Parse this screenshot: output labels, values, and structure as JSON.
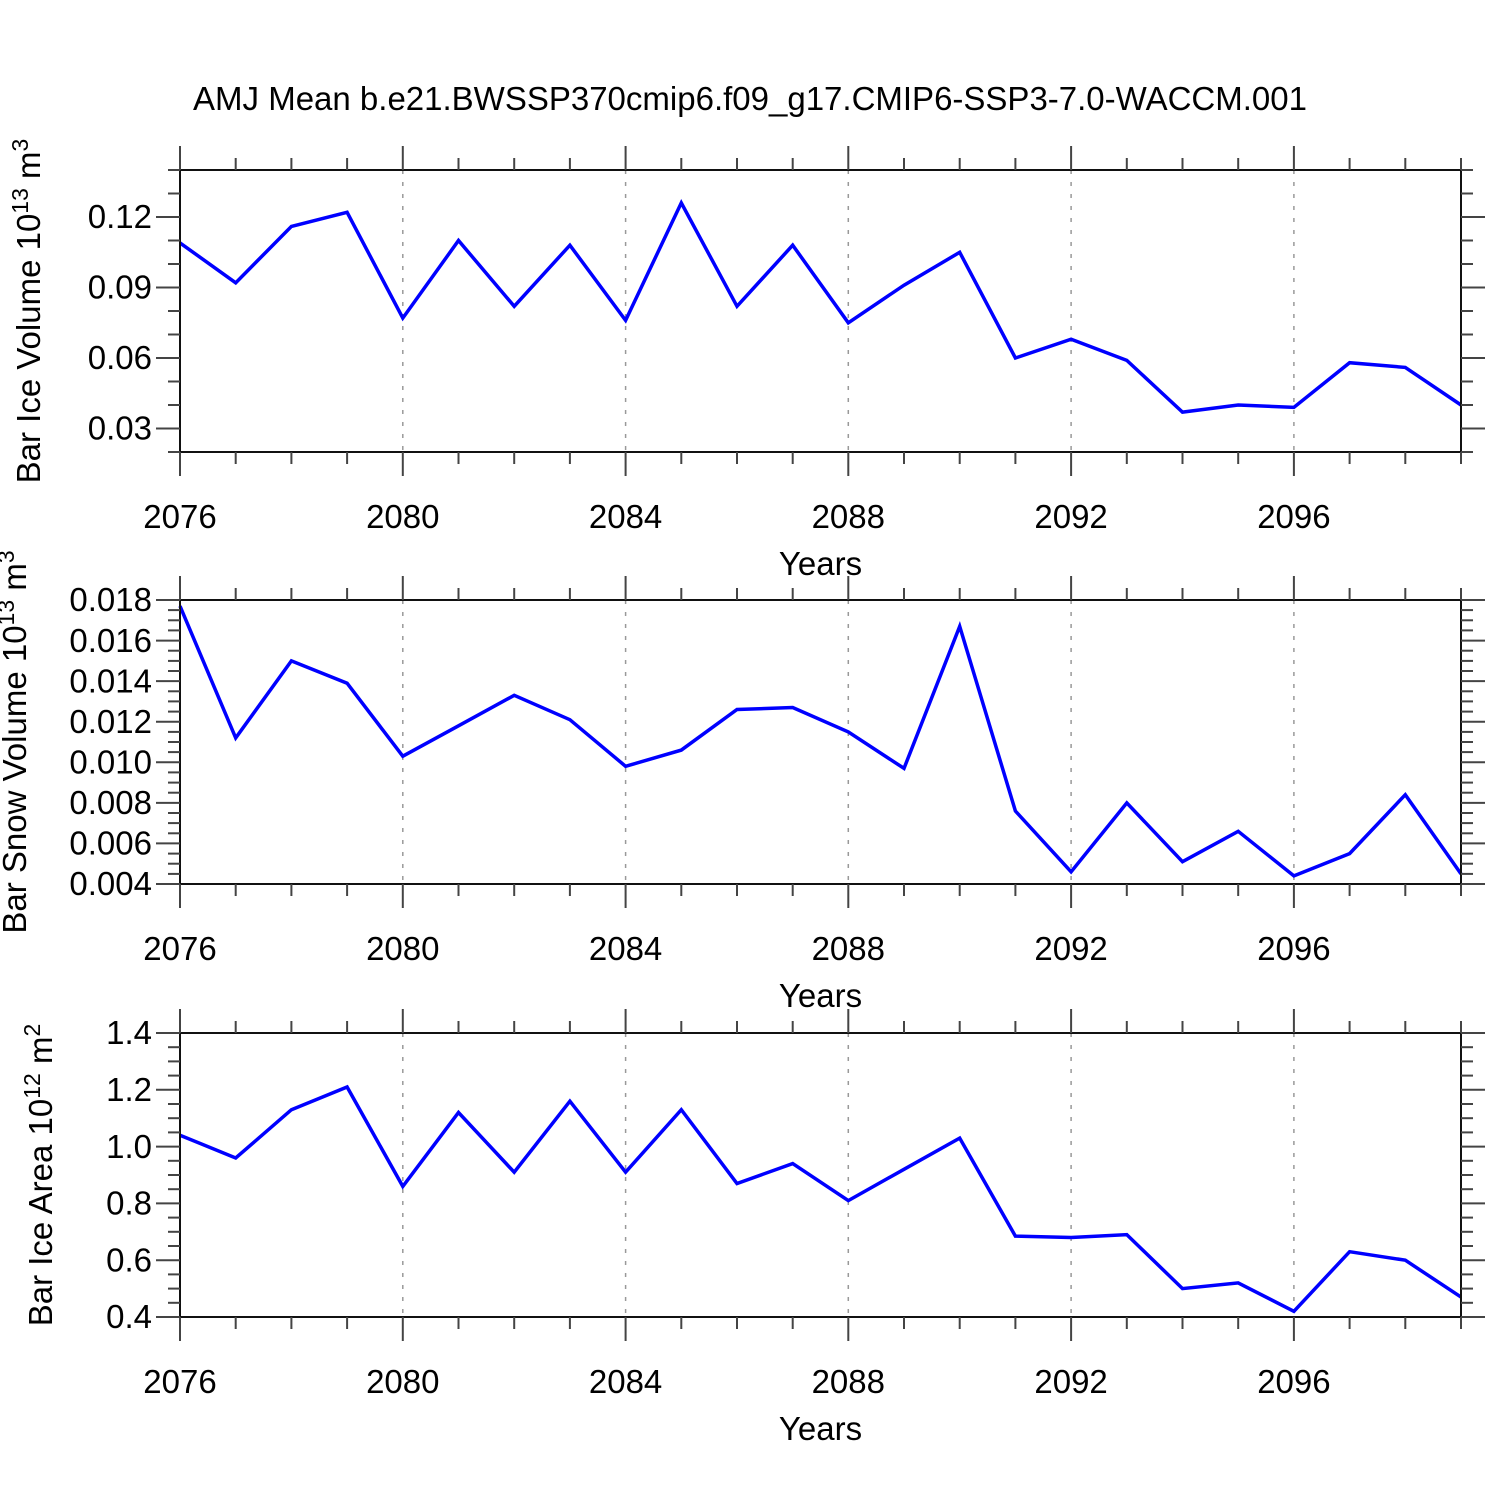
{
  "title": "AMJ Mean b.e21.BWSSP370cmip6.f09_g17.CMIP6-SSP3-7.0-WACCM.001",
  "xlabel": "Years",
  "style": {
    "line_color": "#0000ff",
    "grid_color": "#999999",
    "frame_color": "#111111",
    "tick_color": "#444444",
    "text_color": "#000000",
    "bg_color": "#ffffff"
  },
  "chart_data": {
    "type": "line",
    "x": [
      2076,
      2077,
      2078,
      2079,
      2080,
      2081,
      2082,
      2083,
      2084,
      2085,
      2086,
      2087,
      2088,
      2089,
      2090,
      2091,
      2092,
      2093,
      2094,
      2095,
      2096,
      2097,
      2098,
      2099
    ],
    "xlim": [
      2076,
      2099
    ],
    "x_major_ticks": [
      2076,
      2080,
      2084,
      2088,
      2092,
      2096
    ],
    "x_tick_labels": [
      "2076",
      "2080",
      "2084",
      "2088",
      "2092",
      "2096"
    ],
    "x_minor_step": 1,
    "x_gridlines": [
      2080,
      2084,
      2088,
      2092,
      2096
    ],
    "grid_on": true,
    "legend": "none",
    "xlabel": "Years",
    "panels": [
      {
        "name": "bar-ice-volume",
        "ylabel_text": "Bar Ice Volume 10^13 m^3",
        "ylabel_parts": [
          {
            "t": "Bar Ice Volume 10",
            "sup": false
          },
          {
            "t": "13",
            "sup": true
          },
          {
            "t": " m",
            "sup": false
          },
          {
            "t": "3",
            "sup": true
          }
        ],
        "ylim": [
          0.02,
          0.14
        ],
        "yticks": [
          {
            "v": 0.03,
            "label": "0.03"
          },
          {
            "v": 0.06,
            "label": "0.06"
          },
          {
            "v": 0.09,
            "label": "0.09"
          },
          {
            "v": 0.12,
            "label": "0.12"
          }
        ],
        "y_minor_step": 0.01,
        "values": [
          0.109,
          0.092,
          0.116,
          0.122,
          0.077,
          0.11,
          0.082,
          0.108,
          0.076,
          0.126,
          0.082,
          0.108,
          0.075,
          0.091,
          0.105,
          0.06,
          0.068,
          0.059,
          0.037,
          0.04,
          0.039,
          0.058,
          0.056,
          0.04
        ]
      },
      {
        "name": "bar-snow-volume",
        "ylabel_text": "Bar Snow Volume 10^13 m^3",
        "ylabel_parts": [
          {
            "t": "Bar Snow Volume 10",
            "sup": false
          },
          {
            "t": "13",
            "sup": true
          },
          {
            "t": " m",
            "sup": false
          },
          {
            "t": "3",
            "sup": true
          }
        ],
        "ylim": [
          0.004,
          0.018
        ],
        "yticks": [
          {
            "v": 0.004,
            "label": "0.004"
          },
          {
            "v": 0.006,
            "label": "0.006"
          },
          {
            "v": 0.008,
            "label": "0.008"
          },
          {
            "v": 0.01,
            "label": "0.010"
          },
          {
            "v": 0.012,
            "label": "0.012"
          },
          {
            "v": 0.014,
            "label": "0.014"
          },
          {
            "v": 0.016,
            "label": "0.016"
          },
          {
            "v": 0.018,
            "label": "0.018"
          }
        ],
        "y_minor_step": 0.0005,
        "values": [
          0.0177,
          0.0112,
          0.015,
          0.0139,
          0.0103,
          0.0118,
          0.0133,
          0.0121,
          0.0098,
          0.0106,
          0.0126,
          0.0127,
          0.0115,
          0.0097,
          0.0167,
          0.0076,
          0.0046,
          0.008,
          0.0051,
          0.0066,
          0.0044,
          0.0055,
          0.0084,
          0.0045
        ]
      },
      {
        "name": "bar-ice-area",
        "ylabel_text": "Bar Ice Area 10^12 m^2",
        "ylabel_parts": [
          {
            "t": "Bar Ice Area 10",
            "sup": false
          },
          {
            "t": "12",
            "sup": true
          },
          {
            "t": " m",
            "sup": false
          },
          {
            "t": "2",
            "sup": true
          }
        ],
        "ylim": [
          0.4,
          1.4
        ],
        "yticks": [
          {
            "v": 0.4,
            "label": "0.4"
          },
          {
            "v": 0.6,
            "label": "0.6"
          },
          {
            "v": 0.8,
            "label": "0.8"
          },
          {
            "v": 1.0,
            "label": "1.0"
          },
          {
            "v": 1.2,
            "label": "1.2"
          },
          {
            "v": 1.4,
            "label": "1.4"
          }
        ],
        "y_minor_step": 0.05,
        "values": [
          1.04,
          0.96,
          1.13,
          1.21,
          0.86,
          1.12,
          0.91,
          1.16,
          0.91,
          1.13,
          0.87,
          0.94,
          0.81,
          0.92,
          1.03,
          0.685,
          0.68,
          0.69,
          0.5,
          0.52,
          0.42,
          0.63,
          0.6,
          0.47
        ]
      }
    ]
  }
}
